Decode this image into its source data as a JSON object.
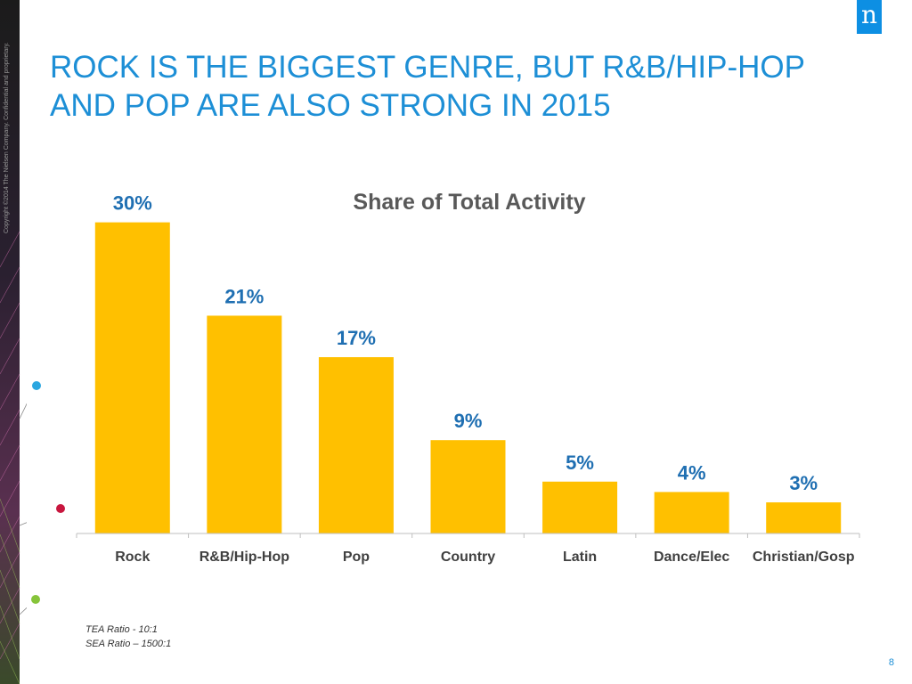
{
  "slide": {
    "title": "ROCK IS THE BIGGEST GENRE, BUT R&B/HIP-HOP AND POP ARE ALSO STRONG IN 2015",
    "copyright": "Copyright ©2014 The Nielsen Company. Confidential and proprietary.",
    "logo_letter": "n",
    "page_number": "8",
    "footnotes": [
      "TEA Ratio - 10:1",
      "SEA Ratio – 1500:1"
    ]
  },
  "colors": {
    "accent": "#1d8fd6",
    "bar": "#ffc000",
    "label": "#1f6fb2",
    "logo_bg": "#0d8fe3"
  },
  "chart_data": {
    "type": "bar",
    "title": "Share of Total Activity",
    "categories": [
      "Rock",
      "R&B/Hip-Hop",
      "Pop",
      "Country",
      "Latin",
      "Dance/Elec",
      "Christian/Gosp"
    ],
    "values": [
      30,
      21,
      17,
      9,
      5,
      4,
      3
    ],
    "data_labels": [
      "30%",
      "21%",
      "17%",
      "9%",
      "5%",
      "4%",
      "3%"
    ],
    "ylim": [
      0,
      31
    ],
    "grid": false,
    "legend": "none"
  }
}
